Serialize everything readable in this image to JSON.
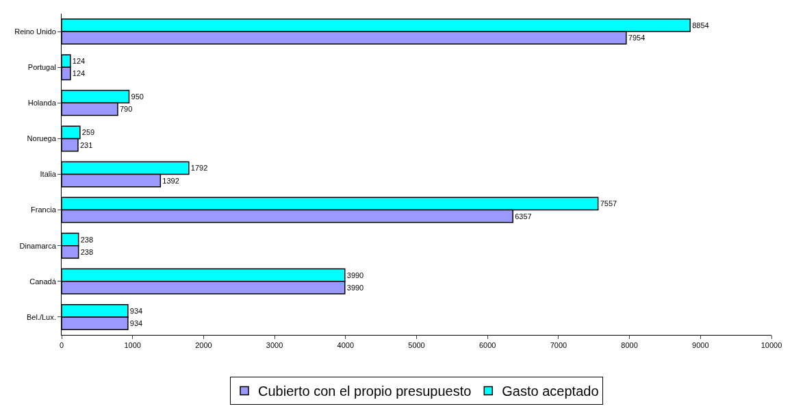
{
  "chart_data": {
    "type": "bar",
    "orientation": "horizontal",
    "categories": [
      "Reino Unido",
      "Portugal",
      "Holanda",
      "Noruega",
      "Italia",
      "Francia",
      "Dinamarca",
      "Canadá",
      "Bel./Lux."
    ],
    "series": [
      {
        "name": "Cubierto con el propio presupuesto",
        "color": "#9999ff",
        "values": [
          7954,
          124,
          790,
          231,
          1392,
          6357,
          238,
          3990,
          934
        ]
      },
      {
        "name": "Gasto aceptado",
        "color": "#00ffff",
        "values": [
          8854,
          124,
          950,
          259,
          1792,
          7557,
          238,
          3990,
          934
        ]
      }
    ],
    "xlim": [
      0,
      10000
    ],
    "xticks": [
      0,
      1000,
      2000,
      3000,
      4000,
      5000,
      6000,
      7000,
      8000,
      9000,
      10000
    ],
    "data_labels": true,
    "legend": "bottom"
  }
}
